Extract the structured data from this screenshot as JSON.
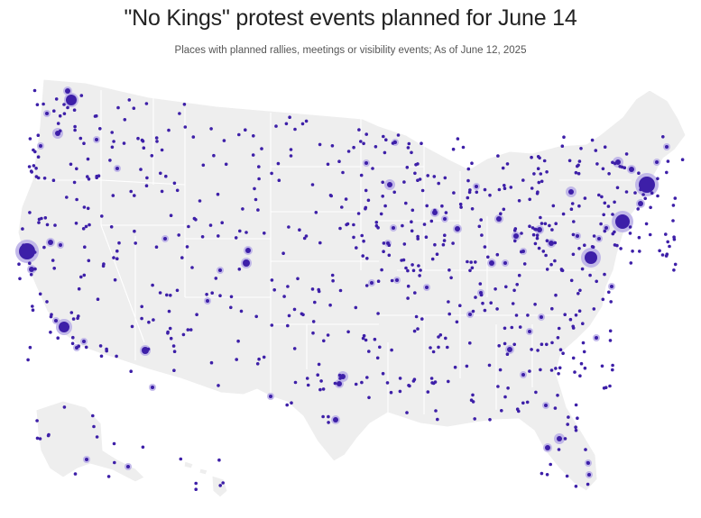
{
  "header": {
    "title": "\"No Kings\" protest events planned for June 14",
    "subtitle": "Places with planned rallies, meetings or visibility events; As of June 12, 2025"
  },
  "colors": {
    "land": "#eeeeee",
    "border": "#ffffff",
    "dot": "#3d1fa8",
    "halo": "#b9aee6"
  },
  "map_data": {
    "regions": [
      "contiguous-us",
      "alaska",
      "hawaii"
    ],
    "marker": "event-location-dot",
    "halo": "larger-event-concentration"
  }
}
